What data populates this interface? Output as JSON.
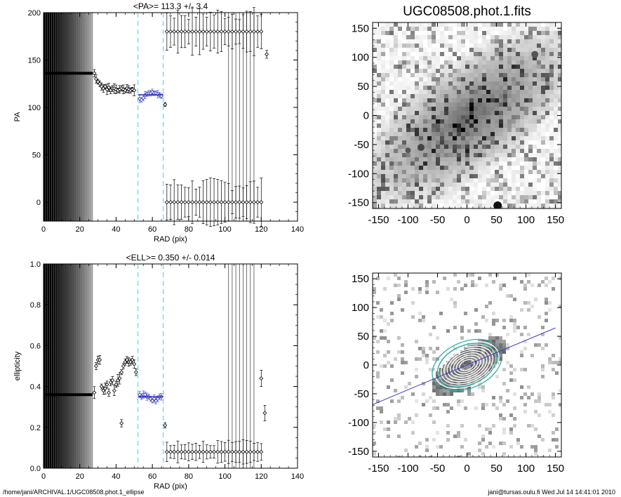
{
  "footer": {
    "path": "/home/jani/ARCHIVAL.1/UGC08508.phot.1_ellipse",
    "user_date": "jani@tursas.oulu.fi  Wed Jul 14 14:41:01 2010"
  },
  "chart_data": [
    {
      "type": "scatter",
      "title": "<PA>= 113.3 +/-   3.4",
      "xlabel": "RAD (pix)",
      "ylabel": "PA",
      "xlim": [
        0,
        140
      ],
      "ylim": [
        -20,
        200
      ],
      "xticks": [
        0,
        20,
        40,
        60,
        80,
        100,
        120,
        140
      ],
      "yticks": [
        0,
        50,
        100,
        150,
        200
      ],
      "mean_value": 113.3,
      "mean_error": 3.4,
      "mean_line_range": [
        52,
        66
      ],
      "vertical_dashed_lines": [
        52,
        66
      ],
      "shaded_region_x": [
        0,
        27
      ],
      "plateau_value": 136,
      "series": [
        {
          "role": "inner",
          "x": [
            28,
            29,
            30,
            31,
            32,
            33,
            34,
            35,
            36,
            37,
            38,
            39,
            40,
            41,
            42,
            43,
            44,
            45,
            46,
            47,
            48,
            49,
            50
          ],
          "y": [
            136,
            130,
            127,
            125,
            122,
            120,
            122,
            119,
            121,
            118,
            120,
            120,
            119,
            118,
            119,
            120,
            119,
            118,
            120,
            119,
            118,
            119,
            118
          ]
        },
        {
          "role": "fitted",
          "x": [
            53,
            54,
            55,
            56,
            57,
            58,
            59,
            60,
            61,
            62,
            63,
            64,
            65
          ],
          "y": [
            109,
            108,
            110,
            113,
            114,
            115,
            115,
            116,
            115,
            115,
            114,
            113,
            112
          ]
        },
        {
          "role": "outer_high",
          "x": [
            68,
            70,
            72,
            74,
            76,
            78,
            80,
            82,
            84,
            86,
            88,
            90,
            92,
            94,
            96,
            98,
            100,
            102,
            104,
            106,
            108,
            110,
            112,
            114,
            116,
            118,
            120
          ],
          "y": [
            180,
            180,
            180,
            180,
            180,
            180,
            180,
            180,
            180,
            180,
            180,
            180,
            180,
            180,
            180,
            180,
            180,
            180,
            180,
            180,
            180,
            180,
            180,
            180,
            180,
            180,
            180
          ]
        },
        {
          "role": "outer_low",
          "x": [
            68,
            70,
            72,
            74,
            76,
            78,
            80,
            82,
            84,
            86,
            88,
            90,
            92,
            94,
            96,
            98,
            100,
            102,
            104,
            106,
            108,
            110,
            112,
            114,
            116,
            118,
            120
          ],
          "y": [
            0,
            0,
            0,
            0,
            0,
            0,
            0,
            0,
            0,
            0,
            0,
            0,
            0,
            0,
            0,
            0,
            0,
            0,
            0,
            0,
            0,
            0,
            0,
            0,
            0,
            0,
            0
          ]
        },
        {
          "role": "isolated",
          "x": [
            67,
            123
          ],
          "y": [
            103,
            156
          ]
        }
      ]
    },
    {
      "type": "image",
      "title": "UGC08508.phot.1.fits",
      "xlim": [
        -160,
        160
      ],
      "ylim": [
        -160,
        160
      ],
      "xticks": [
        -150,
        -100,
        -50,
        0,
        50,
        100,
        150
      ],
      "yticks": [
        -150,
        -100,
        -50,
        0,
        50,
        100,
        150
      ]
    },
    {
      "type": "scatter",
      "title": "<ELL>= 0.350 +/-  0.014",
      "xlabel": "RAD (pix)",
      "ylabel": "ellipticity",
      "xlim": [
        0,
        140
      ],
      "ylim": [
        0,
        1.0
      ],
      "xticks": [
        0,
        20,
        40,
        60,
        80,
        100,
        120,
        140
      ],
      "yticks": [
        0.0,
        0.2,
        0.4,
        0.6,
        0.8,
        1.0
      ],
      "mean_value": 0.35,
      "mean_error": 0.014,
      "mean_line_range": [
        52,
        66
      ],
      "vertical_dashed_lines": [
        52,
        66
      ],
      "shaded_region_x": [
        0,
        27
      ],
      "plateau_value": 0.36,
      "series": [
        {
          "role": "inner",
          "x": [
            28,
            29,
            30,
            31,
            32,
            33,
            34,
            35,
            36,
            37,
            38,
            39,
            40,
            41,
            42,
            43,
            44,
            45,
            46,
            47,
            48,
            49,
            50,
            51
          ],
          "y": [
            0.37,
            0.5,
            0.53,
            0.53,
            0.4,
            0.38,
            0.39,
            0.41,
            0.37,
            0.42,
            0.43,
            0.38,
            0.41,
            0.43,
            0.44,
            0.47,
            0.5,
            0.52,
            0.53,
            0.52,
            0.52,
            0.53,
            0.51,
            0.47
          ]
        },
        {
          "role": "fitted",
          "x": [
            53,
            54,
            55,
            56,
            57,
            58,
            59,
            60,
            61,
            62,
            63,
            64,
            65
          ],
          "y": [
            0.36,
            0.35,
            0.36,
            0.36,
            0.35,
            0.35,
            0.34,
            0.33,
            0.34,
            0.33,
            0.34,
            0.35,
            0.35
          ]
        },
        {
          "role": "outer",
          "x": [
            68,
            70,
            72,
            74,
            76,
            78,
            80,
            82,
            84,
            86,
            88,
            90,
            92,
            94,
            96,
            98,
            100,
            102,
            104,
            106,
            108,
            110,
            112,
            114,
            116,
            118,
            120
          ],
          "y": [
            0.08,
            0.08,
            0.08,
            0.08,
            0.08,
            0.08,
            0.08,
            0.08,
            0.08,
            0.08,
            0.08,
            0.08,
            0.08,
            0.08,
            0.08,
            0.08,
            0.08,
            0.08,
            0.08,
            0.08,
            0.08,
            0.08,
            0.08,
            0.08,
            0.08,
            0.08,
            0.08
          ]
        },
        {
          "role": "isolated",
          "x": [
            43,
            67,
            120,
            122
          ],
          "y": [
            0.22,
            0.21,
            0.44,
            0.27
          ]
        }
      ]
    },
    {
      "type": "image",
      "title": "",
      "xlim": [
        -160,
        160
      ],
      "ylim": [
        -160,
        160
      ],
      "xticks": [
        -150,
        -100,
        -50,
        0,
        50,
        100,
        150
      ],
      "yticks": [
        -150,
        -100,
        -50,
        0,
        50,
        100,
        150
      ],
      "pa_line": {
        "angle_deg": 23.3,
        "x_range": [
          -160,
          150
        ]
      }
    }
  ]
}
